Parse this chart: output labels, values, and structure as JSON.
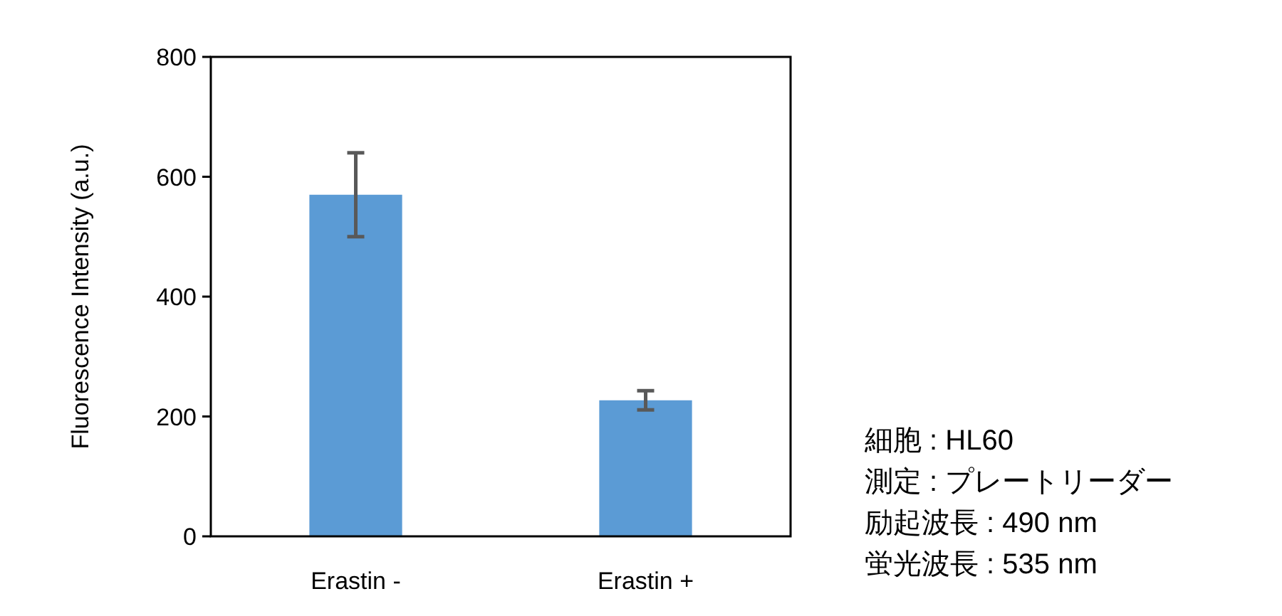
{
  "chart_data": {
    "type": "bar",
    "ylabel": "Fluorescence Intensity (a.u.)",
    "categories": [
      "Erastin -",
      "Erastin +"
    ],
    "values": [
      570,
      227
    ],
    "errors": [
      70,
      16
    ],
    "color": "#5b9bd5",
    "ylim": [
      0,
      800
    ],
    "yticks": [
      0,
      200,
      400,
      600,
      800
    ],
    "grid": false,
    "annotations": [
      "細胞 : HL60",
      "測定 : プレートリーダー",
      "励起波長 : 490 nm",
      "蛍光波長 : 535 nm"
    ]
  }
}
